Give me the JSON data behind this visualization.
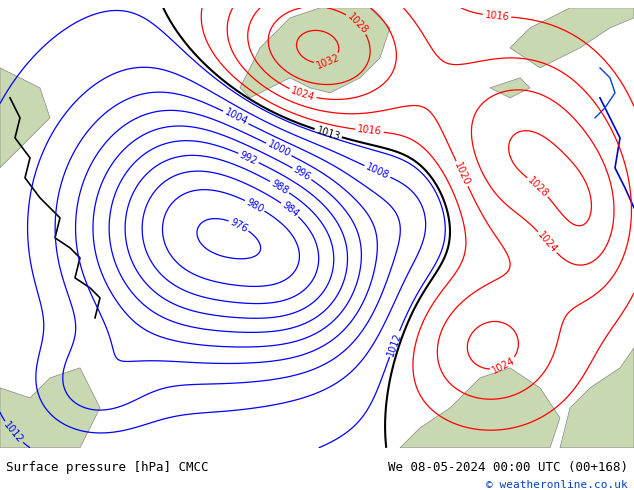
{
  "title_left": "Surface pressure [hPa] CMCC",
  "title_right": "We 08-05-2024 00:00 UTC (00+168)",
  "copyright": "© weatheronline.co.uk",
  "bg_color": "#d0d8e8",
  "land_color": "#c8d8b0",
  "high_land_color": "#b0c898",
  "figsize": [
    6.34,
    4.9
  ],
  "dpi": 100,
  "title_fontsize": 9,
  "copyright_fontsize": 8,
  "label_fontsize": 7
}
